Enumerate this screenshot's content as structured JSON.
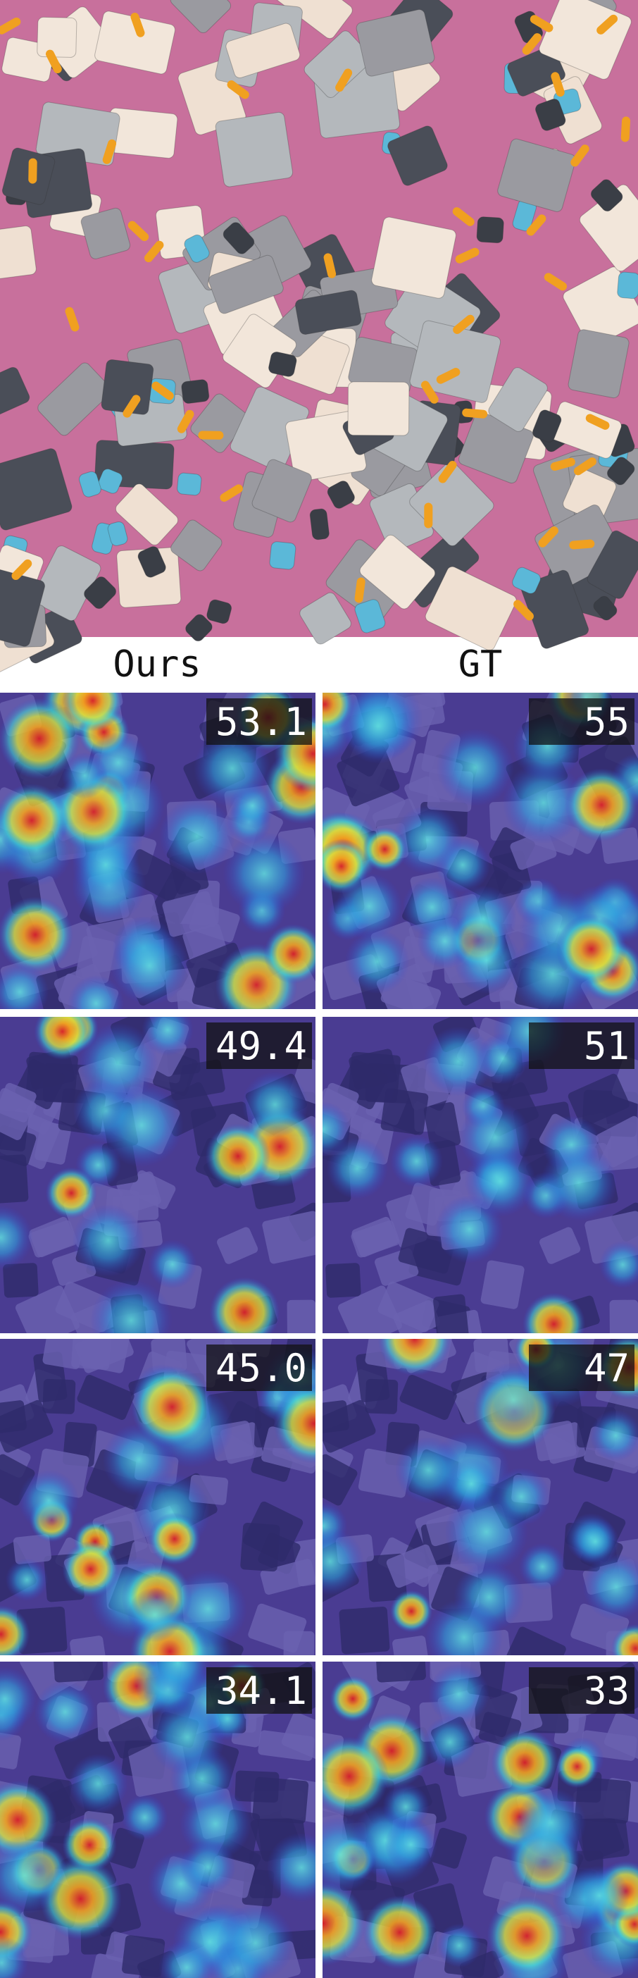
{
  "figure": {
    "column_headers": [
      "Ours",
      "GT"
    ],
    "rows": [
      {
        "ours": "53.1",
        "gt": "55"
      },
      {
        "ours": "49.4",
        "gt": "51"
      },
      {
        "ours": "45.0",
        "gt": "47"
      },
      {
        "ours": "34.1",
        "gt": "33"
      }
    ]
  }
}
